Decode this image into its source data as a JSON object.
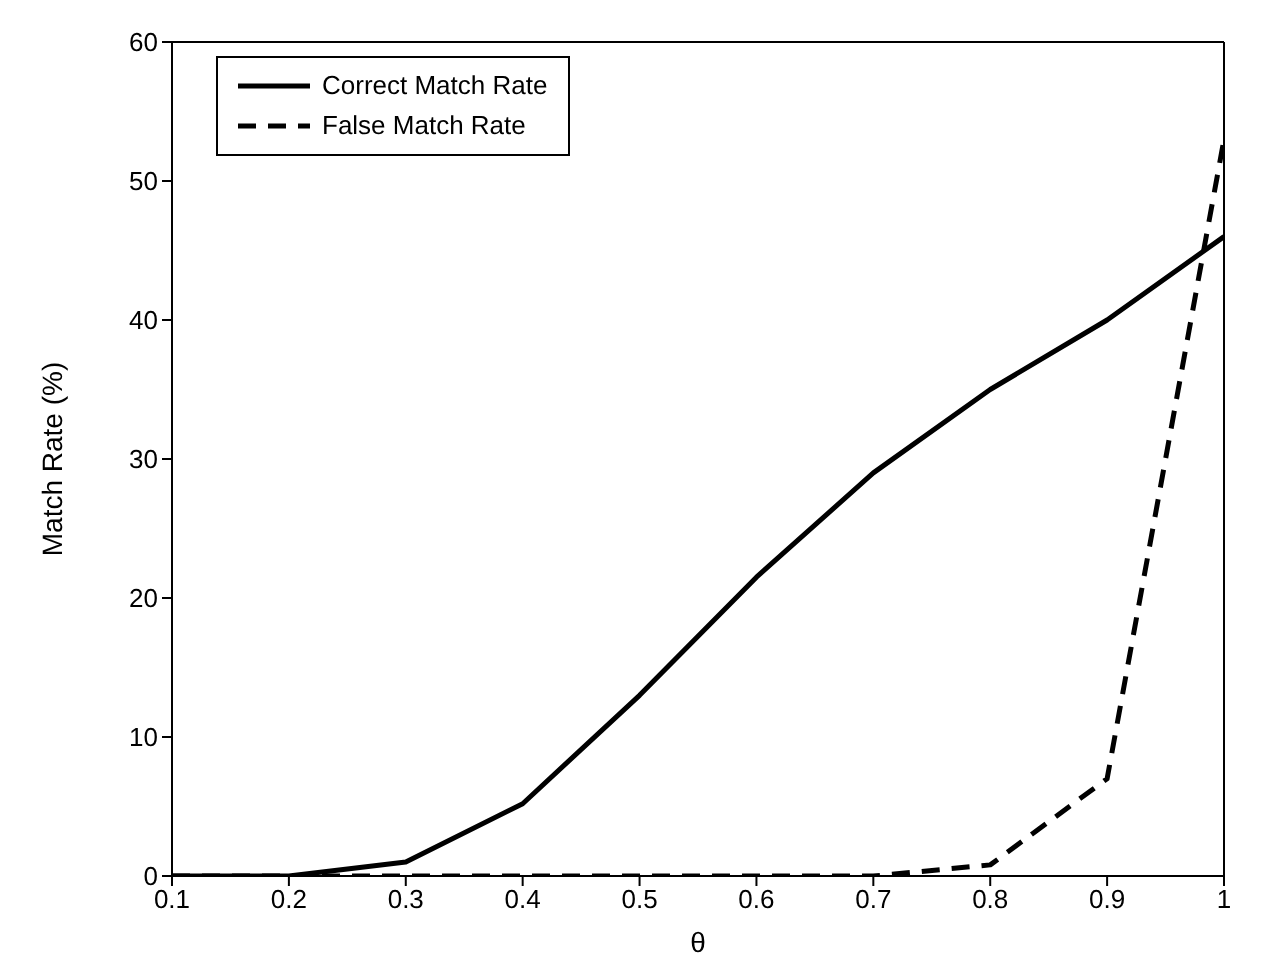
{
  "chart_data": {
    "type": "line",
    "xlabel": "θ",
    "ylabel": "Match Rate (%)",
    "x": [
      0.1,
      0.2,
      0.3,
      0.4,
      0.5,
      0.6,
      0.7,
      0.8,
      0.9,
      1
    ],
    "series": [
      {
        "name": "Correct Match Rate",
        "color": "#000000",
        "line_style": "solid",
        "values": [
          0,
          0,
          1,
          5.2,
          13,
          21.5,
          29,
          35,
          40,
          46
        ]
      },
      {
        "name": "False Match Rate",
        "color": "#000000",
        "line_style": "dashed",
        "values": [
          0,
          0,
          0,
          0,
          0,
          0,
          0,
          0.8,
          7,
          53
        ]
      }
    ],
    "xlim": [
      0.1,
      1
    ],
    "xticks": [
      0.1,
      0.2,
      0.3,
      0.4,
      0.5,
      0.6,
      0.7,
      0.8,
      0.9,
      1
    ],
    "ylim": [
      0,
      60
    ],
    "yticks": [
      0,
      10,
      20,
      30,
      40,
      50,
      60
    ],
    "grid": false,
    "legend": "top left",
    "marker": "none"
  }
}
